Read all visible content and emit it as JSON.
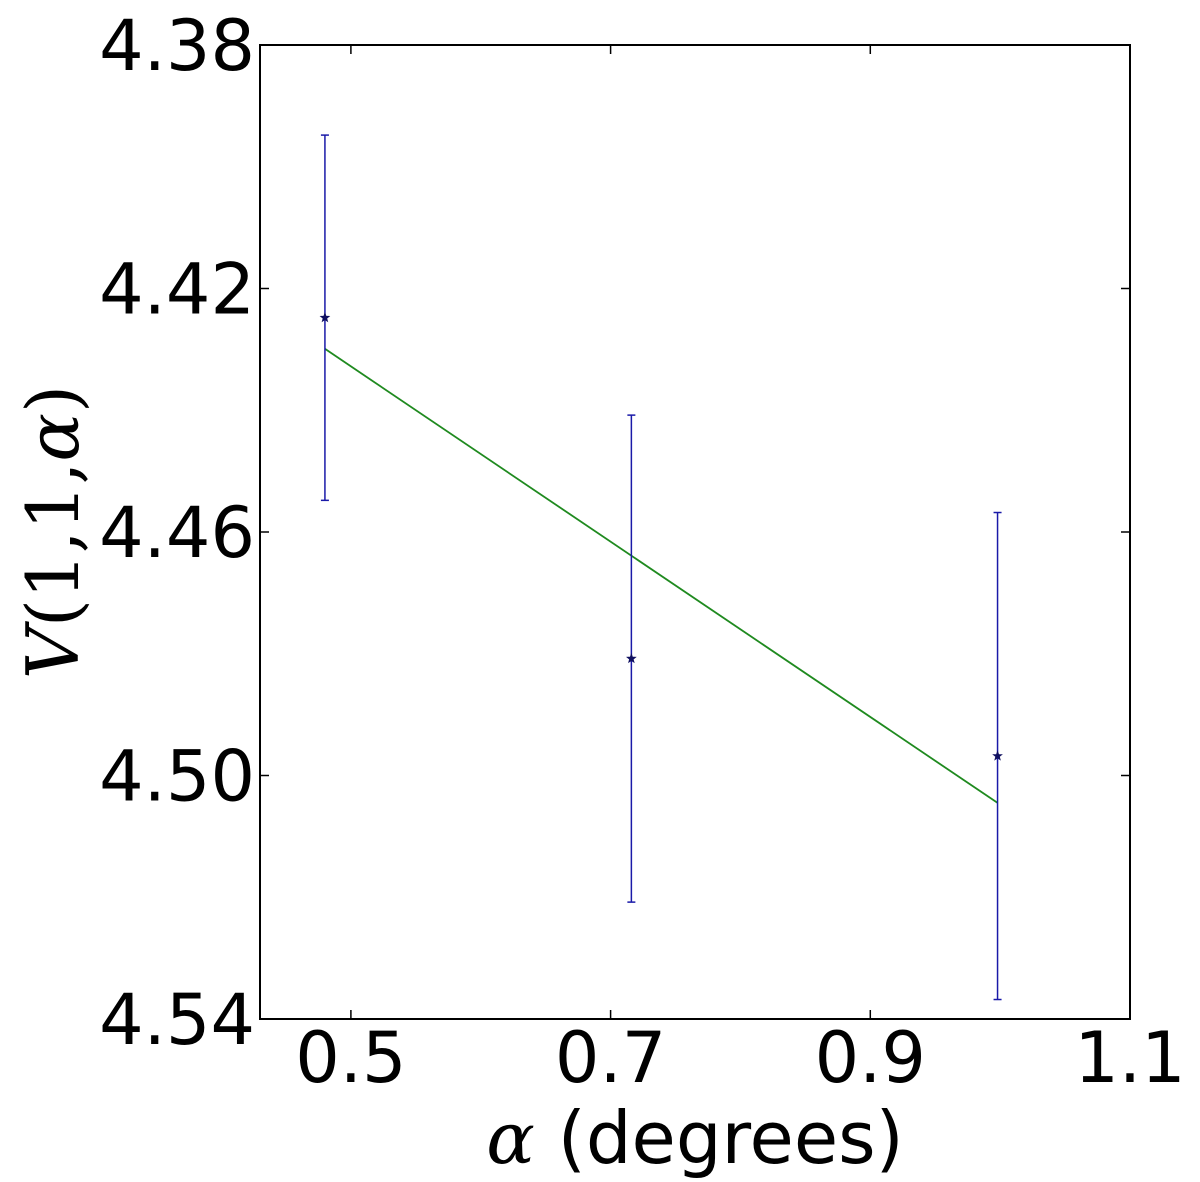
{
  "chart_data": {
    "type": "scatter",
    "title": "",
    "xlabel_symbol": "α",
    "xlabel_text": " (degrees)",
    "ylabel_symbol": "V",
    "ylabel_args": "(1,1,",
    "ylabel_greek": "α",
    "ylabel_close": ")",
    "xlim": [
      0.43,
      1.1
    ],
    "ylim": [
      4.54,
      4.38
    ],
    "y_inverted": true,
    "x_ticks": [
      0.5,
      0.7,
      0.9,
      1.1
    ],
    "x_tick_labels": [
      "0.5",
      "0.7",
      "0.9",
      "1.1"
    ],
    "y_ticks": [
      4.38,
      4.42,
      4.46,
      4.5,
      4.54
    ],
    "y_tick_labels": [
      "4.38",
      "4.42",
      "4.46",
      "4.50",
      "4.54"
    ],
    "grid": false,
    "legend": "none",
    "series": [
      {
        "kind": "errorbar",
        "marker": "star",
        "color": "#1a1aa8",
        "points": [
          {
            "x": 0.48,
            "y": 4.4248,
            "yerr": 0.03
          },
          {
            "x": 0.716,
            "y": 4.4808,
            "yerr": 0.04
          },
          {
            "x": 0.998,
            "y": 4.4968,
            "yerr": 0.04
          }
        ]
      },
      {
        "kind": "fit-line",
        "color": "#1f8a1f",
        "points": [
          {
            "x": 0.48,
            "y": 4.4299
          },
          {
            "x": 0.998,
            "y": 4.5045
          }
        ]
      }
    ]
  }
}
